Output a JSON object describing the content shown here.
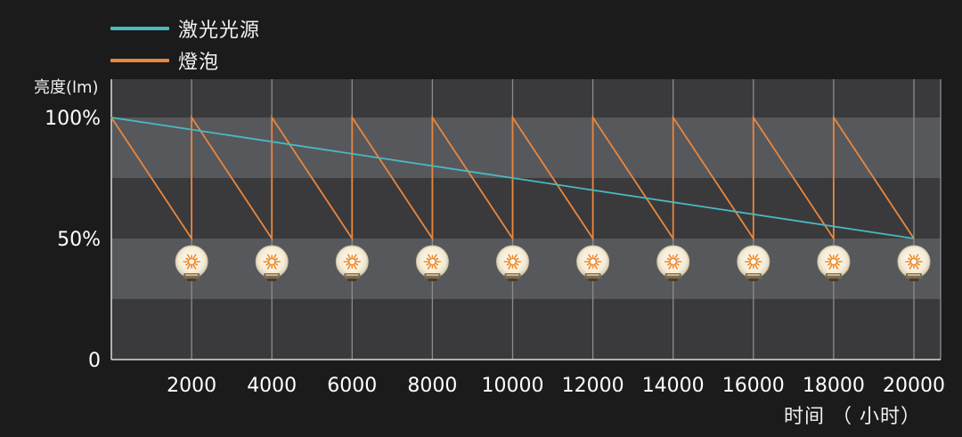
{
  "legend": {
    "items": [
      {
        "label": "激光光源",
        "color": "#4bb8c2"
      },
      {
        "label": "燈泡",
        "color": "#e8873f"
      }
    ]
  },
  "axes": {
    "y_title": "亮度(lm)",
    "x_title": "时间 （ 小时）"
  },
  "chart_data": {
    "type": "line",
    "title": "",
    "xlabel": "时间 （ 小时）",
    "ylabel": "亮度(lm)",
    "xlim": [
      0,
      20000
    ],
    "ylim": [
      0,
      100
    ],
    "x_ticks": [
      2000,
      4000,
      6000,
      8000,
      10000,
      12000,
      14000,
      16000,
      18000,
      20000
    ],
    "x_tick_labels": [
      "2000",
      "4000",
      "6000",
      "8000",
      "10000",
      "12000",
      "14000",
      "16000",
      "18000",
      "20000"
    ],
    "y_ticks": [
      0,
      50,
      100
    ],
    "y_tick_labels": [
      "0",
      "50%",
      "100%"
    ],
    "grid": true,
    "legend_position": "top-left",
    "band_color_light": "#57585c",
    "band_color_dark": "#3a3a3c",
    "series": [
      {
        "name": "激光光源",
        "color": "#4bb8c2",
        "x": [
          0,
          20000
        ],
        "y": [
          100,
          50
        ]
      },
      {
        "name": "燈泡",
        "color": "#e8873f",
        "x": [
          0,
          2000,
          2000,
          4000,
          4000,
          6000,
          6000,
          8000,
          8000,
          10000,
          10000,
          12000,
          12000,
          14000,
          14000,
          16000,
          16000,
          18000,
          18000,
          20000
        ],
        "y": [
          100,
          50,
          100,
          50,
          100,
          50,
          100,
          50,
          100,
          50,
          100,
          50,
          100,
          50,
          100,
          50,
          100,
          50,
          100,
          50
        ]
      }
    ],
    "bulb_icons_at_x": [
      2000,
      4000,
      6000,
      8000,
      10000,
      12000,
      14000,
      16000,
      18000,
      20000
    ]
  }
}
